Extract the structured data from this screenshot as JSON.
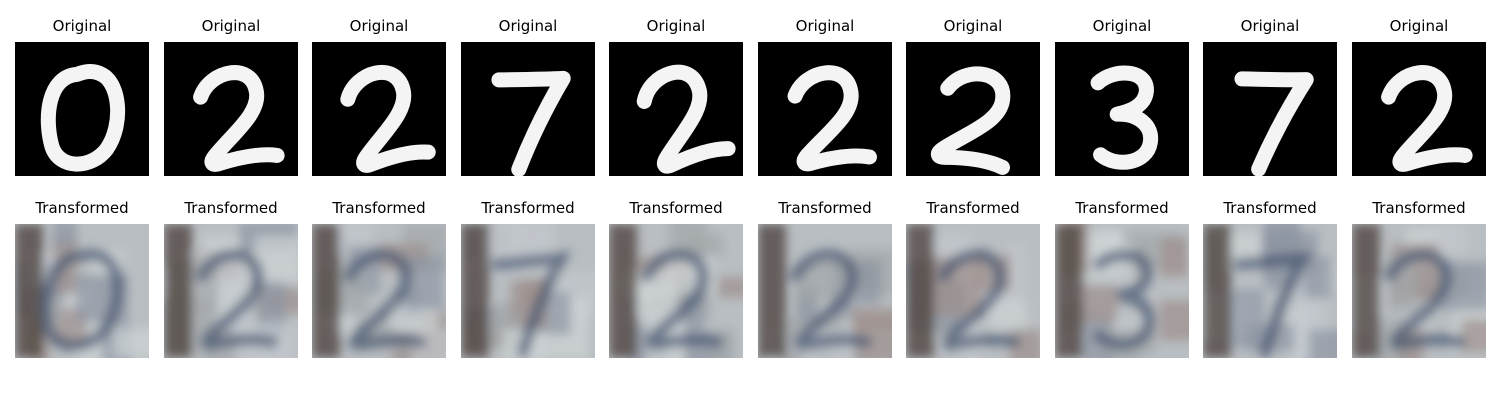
{
  "figure": {
    "rows": [
      {
        "kind": "original",
        "panels": [
          {
            "title": "Original",
            "digit": "0"
          },
          {
            "title": "Original",
            "digit": "2"
          },
          {
            "title": "Original",
            "digit": "2"
          },
          {
            "title": "Original",
            "digit": "7"
          },
          {
            "title": "Original",
            "digit": "2"
          },
          {
            "title": "Original",
            "digit": "2"
          },
          {
            "title": "Original",
            "digit": "2"
          },
          {
            "title": "Original",
            "digit": "3"
          },
          {
            "title": "Original",
            "digit": "7"
          },
          {
            "title": "Original",
            "digit": "2"
          }
        ]
      },
      {
        "kind": "transformed",
        "panels": [
          {
            "title": "Transformed",
            "digit": "0"
          },
          {
            "title": "Transformed",
            "digit": "2"
          },
          {
            "title": "Transformed",
            "digit": "2"
          },
          {
            "title": "Transformed",
            "digit": "7"
          },
          {
            "title": "Transformed",
            "digit": "2"
          },
          {
            "title": "Transformed",
            "digit": "2"
          },
          {
            "title": "Transformed",
            "digit": "2"
          },
          {
            "title": "Transformed",
            "digit": "3"
          },
          {
            "title": "Transformed",
            "digit": "7"
          },
          {
            "title": "Transformed",
            "digit": "2"
          }
        ]
      }
    ],
    "colors": {
      "original_background": "#000000",
      "original_stroke": "#f4f4f4",
      "transformed_base": "#b9bec2",
      "transformed_dark_band": "#4a3f3a",
      "transformed_stroke": "#3d4e6a"
    }
  }
}
